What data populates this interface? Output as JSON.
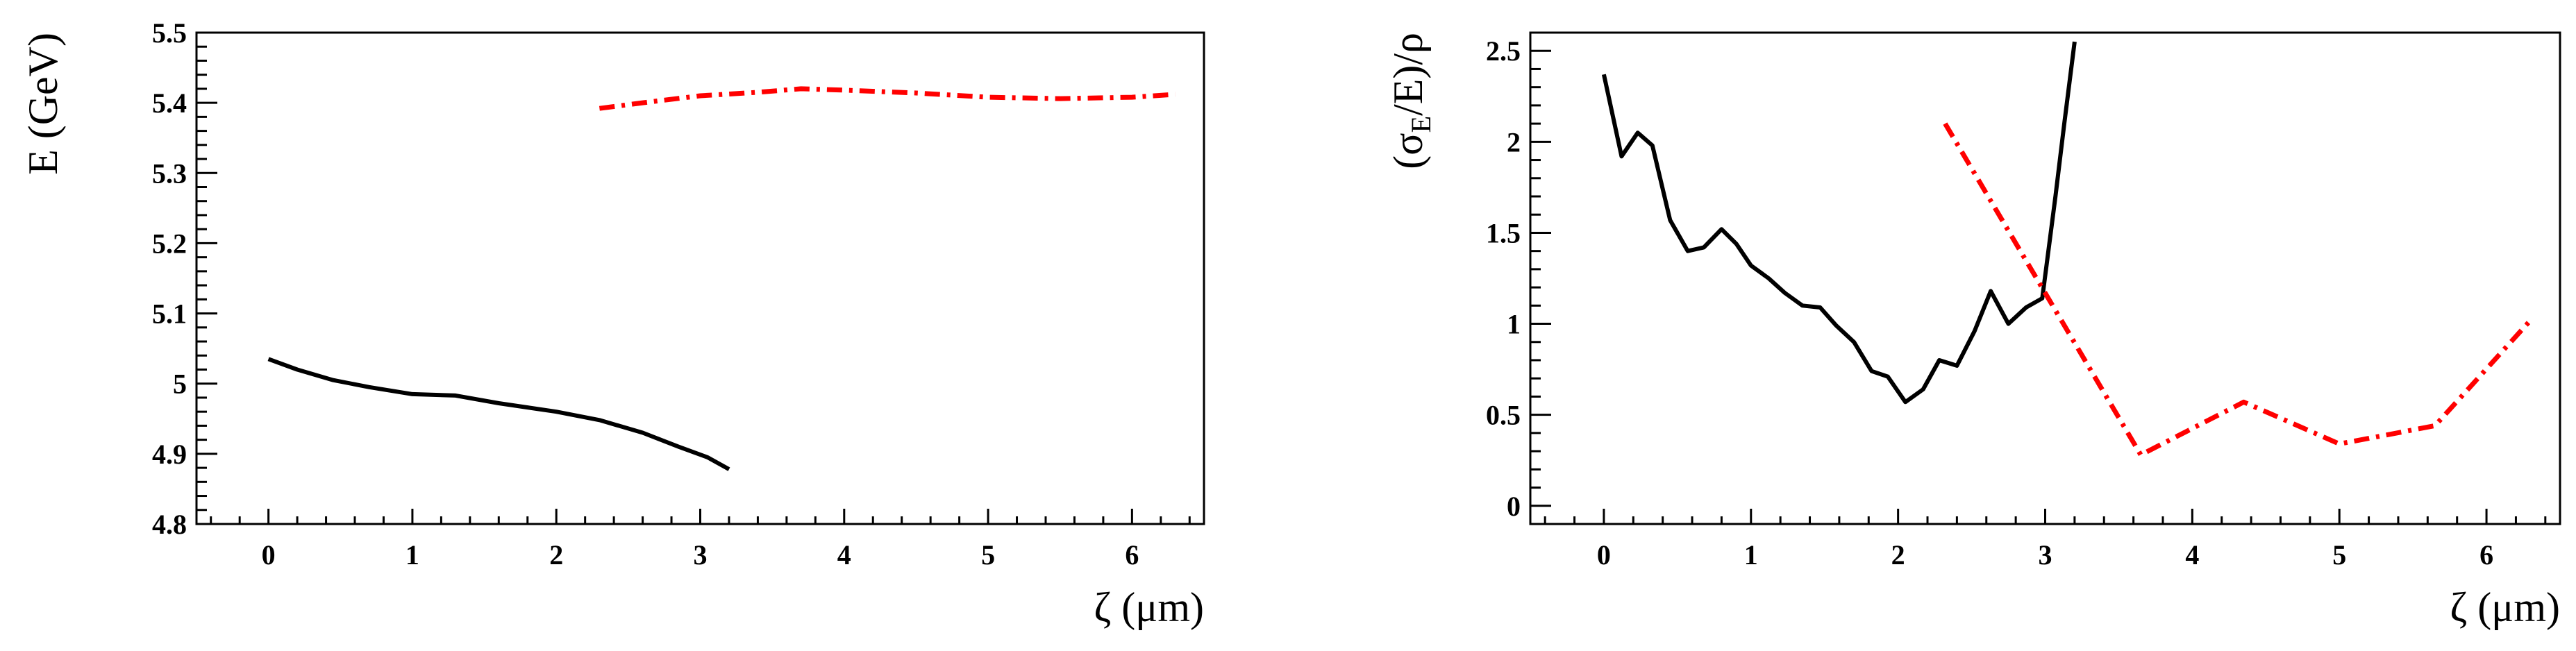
{
  "chart_data": [
    {
      "type": "line",
      "xlabel": "ζ (μm)",
      "ylabel": "E (GeV)",
      "xlim": [
        -0.5,
        6.5
      ],
      "ylim": [
        4.8,
        5.5
      ],
      "xticks": [
        0,
        1,
        2,
        3,
        4,
        5,
        6
      ],
      "xtick_labels": [
        "0",
        "1",
        "2",
        "3",
        "4",
        "5",
        "6"
      ],
      "yticks": [
        4.8,
        4.9,
        5.0,
        5.1,
        5.2,
        5.3,
        5.4,
        5.5
      ],
      "ytick_labels": [
        "4.8",
        "4.9",
        "5",
        "5.1",
        "5.2",
        "5.3",
        "5.4",
        "5.5"
      ],
      "grid": false,
      "series": [
        {
          "color": "#000000",
          "style": "solid",
          "x": [
            0.0,
            0.2,
            0.45,
            0.7,
            1.0,
            1.3,
            1.6,
            2.0,
            2.3,
            2.6,
            2.85,
            3.05,
            3.2
          ],
          "y": [
            5.035,
            5.02,
            5.005,
            4.995,
            4.985,
            4.983,
            4.972,
            4.96,
            4.948,
            4.93,
            4.91,
            4.895,
            4.878
          ]
        },
        {
          "color": "#ff0000",
          "style": "dashdot",
          "x": [
            2.3,
            2.6,
            3.0,
            3.4,
            3.7,
            4.0,
            4.5,
            5.0,
            5.5,
            6.0,
            6.3
          ],
          "y": [
            5.392,
            5.4,
            5.41,
            5.415,
            5.42,
            5.418,
            5.414,
            5.408,
            5.406,
            5.408,
            5.412
          ]
        }
      ]
    },
    {
      "type": "line",
      "xlabel": "ζ (μm)",
      "ylabel": "(σE/E)/ρ",
      "ylabel_parts": {
        "open": "(σ",
        "sub": "E",
        "close": "/E)/ρ"
      },
      "xlim": [
        -0.5,
        6.5
      ],
      "ylim": [
        -0.1,
        2.6
      ],
      "xticks": [
        0,
        1,
        2,
        3,
        4,
        5,
        6
      ],
      "xtick_labels": [
        "0",
        "1",
        "2",
        "3",
        "4",
        "5",
        "6"
      ],
      "yticks": [
        0,
        0.5,
        1.0,
        1.5,
        2.0,
        2.5
      ],
      "ytick_labels": [
        "0",
        "0.5",
        "1",
        "1.5",
        "2",
        "2.5"
      ],
      "grid": false,
      "series": [
        {
          "color": "#000000",
          "style": "solid",
          "x": [
            0.0,
            0.12,
            0.23,
            0.33,
            0.45,
            0.57,
            0.68,
            0.8,
            0.9,
            1.0,
            1.12,
            1.23,
            1.35,
            1.47,
            1.58,
            1.7,
            1.82,
            1.93,
            2.05,
            2.17,
            2.28,
            2.4,
            2.52,
            2.63,
            2.75,
            2.87,
            2.98,
            3.07,
            3.13,
            3.2
          ],
          "y": [
            2.37,
            1.92,
            2.05,
            1.98,
            1.57,
            1.4,
            1.42,
            1.52,
            1.44,
            1.32,
            1.25,
            1.17,
            1.1,
            1.09,
            0.99,
            0.9,
            0.74,
            0.71,
            0.57,
            0.64,
            0.8,
            0.77,
            0.96,
            1.18,
            1.0,
            1.09,
            1.14,
            1.7,
            2.1,
            2.55
          ]
        },
        {
          "color": "#ff0000",
          "style": "dashdot",
          "x": [
            2.32,
            3.65,
            4.35,
            5.0,
            5.65,
            6.3
          ],
          "y": [
            2.1,
            0.28,
            0.57,
            0.34,
            0.44,
            1.02
          ]
        }
      ]
    }
  ]
}
